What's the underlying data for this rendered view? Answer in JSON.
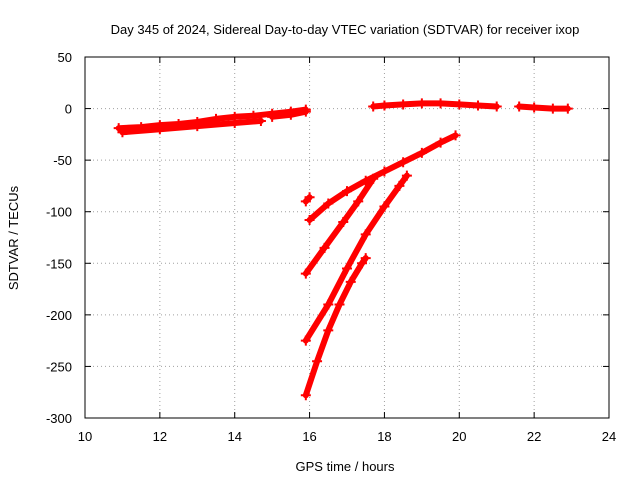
{
  "chart_data": {
    "type": "scatter",
    "title": "Day 345 of 2024, Sidereal Day-to-day VTEC variation (SDTVAR) for receiver ixop",
    "xlabel": "GPS time / hours",
    "ylabel": "SDTVAR / TECUs",
    "xlim": [
      10,
      24
    ],
    "ylim": [
      -300,
      50
    ],
    "x_ticks": [
      "10",
      "12",
      "14",
      "16",
      "18",
      "20",
      "22",
      "24"
    ],
    "y_ticks": [
      "50",
      "0",
      "-50",
      "-100",
      "-150",
      "-200",
      "-250",
      "-300"
    ],
    "grid": true,
    "legend": "none",
    "series_color": "#ff0000",
    "series": [
      {
        "x": [
          10.9,
          11.5,
          12.0,
          12.5,
          13.0,
          13.5,
          14.0,
          14.5,
          15.0,
          15.5,
          15.9
        ],
        "y": [
          -19,
          -18,
          -16,
          -15,
          -13,
          -10,
          -8,
          -7,
          -5,
          -3,
          -1
        ]
      },
      {
        "x": [
          11.0,
          12.0,
          13.0,
          14.0,
          14.7
        ],
        "y": [
          -23,
          -20,
          -17,
          -14,
          -12
        ]
      },
      {
        "x": [
          15.0,
          15.5,
          15.9
        ],
        "y": [
          -8,
          -6,
          -3
        ]
      },
      {
        "x": [
          17.7,
          18.0,
          18.5,
          19.0,
          19.5,
          20.0,
          20.5,
          21.0
        ],
        "y": [
          2,
          3,
          4,
          5,
          5,
          4,
          3,
          2
        ]
      },
      {
        "x": [
          21.6,
          22.0,
          22.5,
          22.9
        ],
        "y": [
          2,
          1,
          0,
          0
        ]
      },
      {
        "x": [
          15.9,
          16.0
        ],
        "y": [
          -90,
          -86
        ]
      },
      {
        "x": [
          16.0,
          16.5,
          17.0,
          17.5,
          18.0,
          18.5,
          19.0,
          19.5,
          19.9
        ],
        "y": [
          -108,
          -92,
          -80,
          -70,
          -61,
          -52,
          -43,
          -33,
          -26
        ]
      },
      {
        "x": [
          15.9,
          16.4,
          16.9,
          17.3,
          17.7
        ],
        "y": [
          -160,
          -135,
          -110,
          -90,
          -68
        ]
      },
      {
        "x": [
          15.9,
          16.5,
          17.0,
          17.5,
          18.0,
          18.4,
          18.6
        ],
        "y": [
          -225,
          -190,
          -155,
          -122,
          -95,
          -75,
          -65
        ]
      },
      {
        "x": [
          15.9,
          16.2,
          16.5,
          16.8,
          17.1,
          17.4,
          17.5
        ],
        "y": [
          -278,
          -245,
          -215,
          -190,
          -168,
          -150,
          -145
        ]
      }
    ]
  }
}
